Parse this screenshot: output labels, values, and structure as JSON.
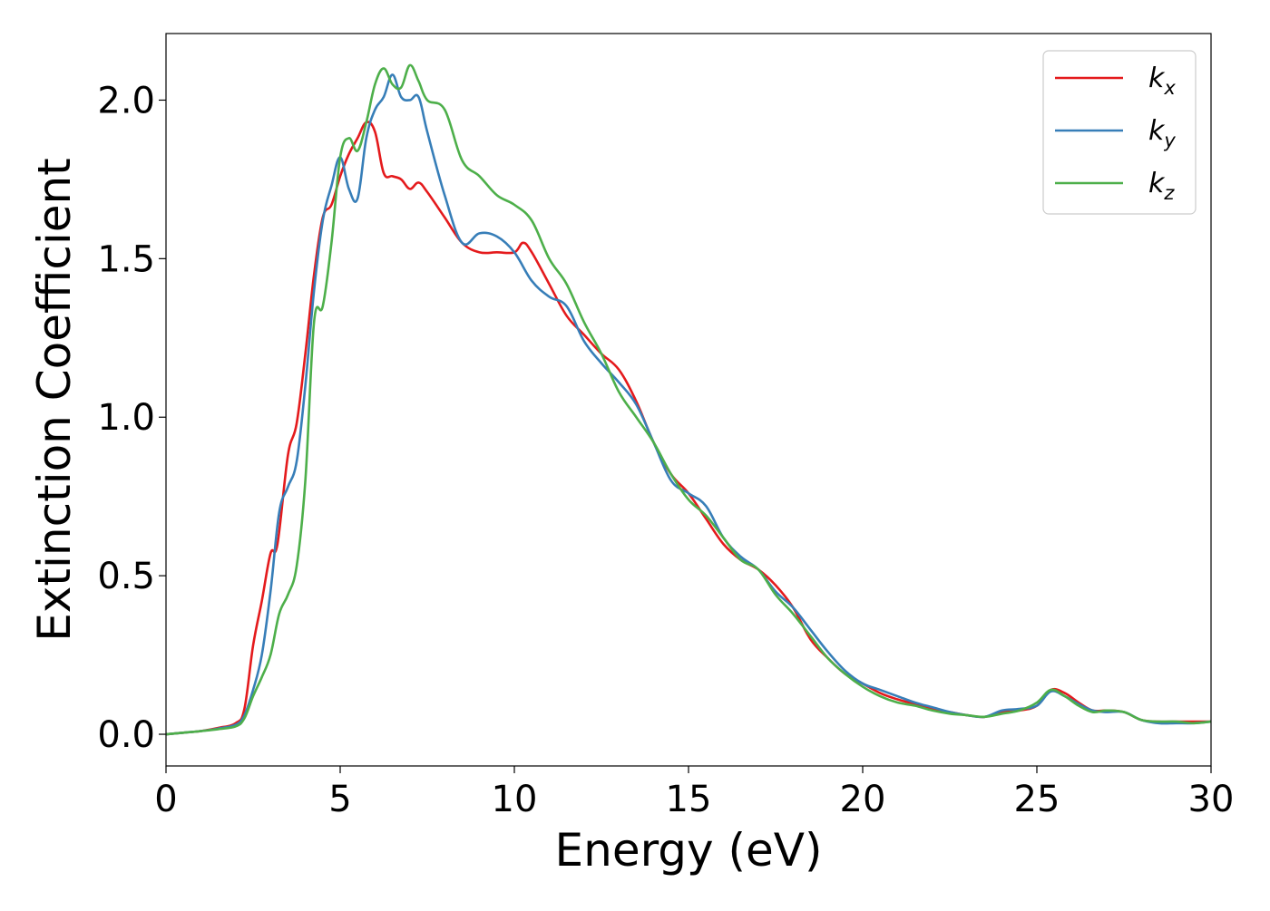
{
  "chart_data": {
    "type": "line",
    "title": "",
    "xlabel": "Energy (eV)",
    "ylabel": "Extinction Coefficient",
    "xlim": [
      0,
      30
    ],
    "ylim": [
      -0.1,
      2.21
    ],
    "xticks": [
      0,
      5,
      10,
      15,
      20,
      25,
      30
    ],
    "yticks": [
      0.0,
      0.5,
      1.0,
      1.5,
      2.0
    ],
    "xtick_labels": [
      "0",
      "5",
      "10",
      "15",
      "20",
      "25",
      "30"
    ],
    "ytick_labels": [
      "0.0",
      "0.5",
      "1.0",
      "1.5",
      "2.0"
    ],
    "grid": false,
    "legend_position": "top-right",
    "series": [
      {
        "name": "k_x",
        "legend_base": "k",
        "legend_sub": "x",
        "color": "#e41a1c",
        "x": [
          0,
          0.5,
          1,
          1.5,
          2,
          2.25,
          2.5,
          2.75,
          3,
          3.2,
          3.5,
          3.75,
          4,
          4.25,
          4.5,
          4.75,
          5,
          5.25,
          5.5,
          5.75,
          6,
          6.25,
          6.5,
          6.75,
          7,
          7.25,
          7.5,
          8,
          8.5,
          9,
          9.5,
          10,
          10.25,
          10.5,
          11,
          11.5,
          12,
          12.5,
          13,
          13.5,
          14,
          14.5,
          15,
          15.5,
          16,
          16.5,
          17,
          17.5,
          18,
          18.5,
          19,
          19.5,
          20,
          20.5,
          21,
          21.5,
          22,
          22.5,
          23,
          23.5,
          24,
          24.5,
          25,
          25.4,
          25.8,
          26.2,
          26.6,
          27,
          27.5,
          28,
          28.5,
          29,
          29.5,
          30
        ],
        "values": [
          0.0,
          0.005,
          0.01,
          0.02,
          0.035,
          0.08,
          0.28,
          0.42,
          0.57,
          0.6,
          0.88,
          0.98,
          1.2,
          1.45,
          1.63,
          1.67,
          1.76,
          1.83,
          1.88,
          1.93,
          1.9,
          1.77,
          1.76,
          1.75,
          1.72,
          1.74,
          1.71,
          1.63,
          1.55,
          1.52,
          1.52,
          1.52,
          1.55,
          1.52,
          1.42,
          1.32,
          1.26,
          1.2,
          1.15,
          1.05,
          0.92,
          0.82,
          0.76,
          0.68,
          0.6,
          0.55,
          0.52,
          0.47,
          0.4,
          0.3,
          0.24,
          0.19,
          0.16,
          0.13,
          0.11,
          0.095,
          0.08,
          0.07,
          0.06,
          0.055,
          0.07,
          0.075,
          0.09,
          0.14,
          0.13,
          0.1,
          0.075,
          0.075,
          0.07,
          0.045,
          0.04,
          0.04,
          0.04,
          0.04
        ]
      },
      {
        "name": "k_y",
        "legend_base": "k",
        "legend_sub": "y",
        "color": "#377eb8",
        "x": [
          0,
          0.5,
          1,
          1.5,
          2,
          2.25,
          2.5,
          2.75,
          3,
          3.25,
          3.5,
          3.75,
          4,
          4.25,
          4.5,
          4.75,
          5,
          5.25,
          5.5,
          5.75,
          6,
          6.25,
          6.5,
          6.75,
          7,
          7.25,
          7.5,
          8,
          8.5,
          9,
          9.5,
          10,
          10.5,
          11,
          11.5,
          12,
          12.5,
          13,
          13.5,
          14,
          14.5,
          15,
          15.5,
          16,
          16.5,
          17,
          17.5,
          18,
          18.5,
          19,
          19.5,
          20,
          20.5,
          21,
          21.5,
          22,
          22.5,
          23,
          23.5,
          24,
          24.5,
          25,
          25.4,
          25.8,
          26.2,
          26.6,
          27,
          27.5,
          28,
          28.5,
          29,
          29.5,
          30
        ],
        "values": [
          0.0,
          0.005,
          0.01,
          0.018,
          0.03,
          0.06,
          0.14,
          0.25,
          0.45,
          0.7,
          0.78,
          0.86,
          1.1,
          1.4,
          1.62,
          1.73,
          1.82,
          1.72,
          1.69,
          1.88,
          1.97,
          2.01,
          2.08,
          2.01,
          2.0,
          2.01,
          1.9,
          1.7,
          1.55,
          1.58,
          1.57,
          1.52,
          1.43,
          1.38,
          1.35,
          1.24,
          1.17,
          1.11,
          1.04,
          0.92,
          0.8,
          0.76,
          0.72,
          0.62,
          0.56,
          0.52,
          0.45,
          0.4,
          0.33,
          0.26,
          0.2,
          0.16,
          0.14,
          0.12,
          0.1,
          0.085,
          0.07,
          0.06,
          0.055,
          0.075,
          0.08,
          0.09,
          0.135,
          0.12,
          0.095,
          0.075,
          0.07,
          0.07,
          0.045,
          0.035,
          0.035,
          0.035,
          0.04
        ]
      },
      {
        "name": "k_z",
        "legend_base": "k",
        "legend_sub": "z",
        "color": "#4daf4a",
        "x": [
          0,
          0.5,
          1,
          1.5,
          2,
          2.25,
          2.5,
          2.75,
          3,
          3.25,
          3.5,
          3.75,
          4,
          4.25,
          4.5,
          4.75,
          5,
          5.25,
          5.5,
          5.75,
          6,
          6.25,
          6.5,
          6.75,
          7,
          7.25,
          7.5,
          8,
          8.5,
          9,
          9.5,
          10,
          10.5,
          11,
          11.5,
          12,
          12.5,
          13,
          13.5,
          14,
          14.5,
          15,
          15.5,
          16,
          16.5,
          17,
          17.5,
          18,
          18.5,
          19,
          19.5,
          20,
          20.5,
          21,
          21.5,
          22,
          22.5,
          23,
          23.5,
          24,
          24.5,
          25,
          25.4,
          25.8,
          26.2,
          26.6,
          27,
          27.5,
          28,
          28.5,
          29,
          29.5,
          30
        ],
        "values": [
          0.0,
          0.005,
          0.01,
          0.016,
          0.025,
          0.05,
          0.12,
          0.18,
          0.25,
          0.38,
          0.44,
          0.53,
          0.8,
          1.3,
          1.35,
          1.55,
          1.82,
          1.88,
          1.84,
          1.93,
          2.05,
          2.1,
          2.05,
          2.04,
          2.11,
          2.06,
          2.0,
          1.97,
          1.81,
          1.76,
          1.7,
          1.67,
          1.62,
          1.5,
          1.42,
          1.3,
          1.2,
          1.08,
          1.0,
          0.92,
          0.82,
          0.74,
          0.69,
          0.62,
          0.55,
          0.52,
          0.44,
          0.38,
          0.31,
          0.24,
          0.19,
          0.15,
          0.12,
          0.1,
          0.09,
          0.075,
          0.065,
          0.06,
          0.055,
          0.065,
          0.075,
          0.1,
          0.14,
          0.12,
          0.09,
          0.07,
          0.075,
          0.07,
          0.045,
          0.04,
          0.04,
          0.035,
          0.04
        ]
      }
    ]
  }
}
